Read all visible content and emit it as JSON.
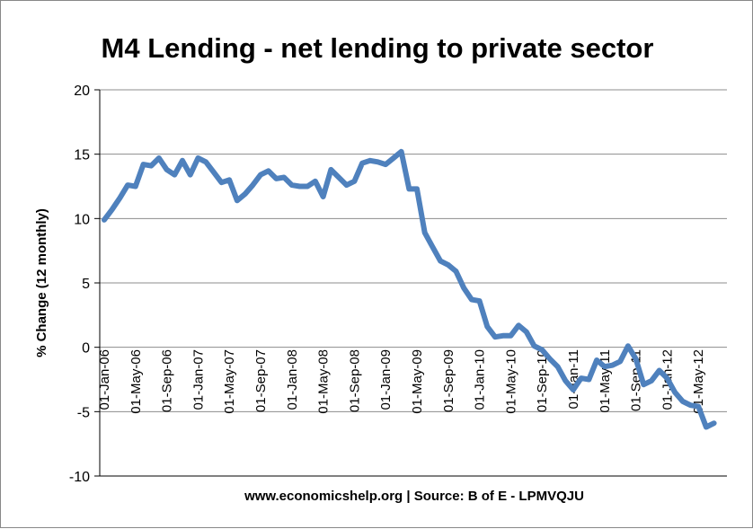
{
  "chart_data": {
    "type": "line",
    "title": "M4 Lending - net lending to private sector",
    "ylabel": "% Change (12 monthly)",
    "xlabel": "www.economicshelp.org | Source: B of E - LPMVQJU",
    "ylim": [
      -10,
      20
    ],
    "yticks": [
      20,
      15,
      10,
      5,
      0,
      -5,
      -10
    ],
    "grid": "horizontal",
    "legend": "none",
    "line_color": "#4f81bd",
    "grid_color": "#8c8c8c",
    "x_tick_labels": [
      "01-Jan-06",
      "01-May-06",
      "01-Sep-06",
      "01-Jan-07",
      "01-May-07",
      "01-Sep-07",
      "01-Jan-08",
      "01-May-08",
      "01-Sep-08",
      "01-Jan-09",
      "01-May-09",
      "01-Sep-09",
      "01-Jan-10",
      "01-May-10",
      "01-Sep-10",
      "01-Jan-11",
      "01-May-11",
      "01-Sep-11",
      "01-Jan-12",
      "01-May-12"
    ],
    "series": [
      {
        "x": [
          "2006-01",
          "2006-02",
          "2006-03",
          "2006-04",
          "2006-05",
          "2006-06",
          "2006-07",
          "2006-08",
          "2006-09",
          "2006-10",
          "2006-11",
          "2006-12",
          "2007-01",
          "2007-02",
          "2007-03",
          "2007-04",
          "2007-05",
          "2007-06",
          "2007-07",
          "2007-08",
          "2007-09",
          "2007-10",
          "2007-11",
          "2007-12",
          "2008-01",
          "2008-02",
          "2008-03",
          "2008-04",
          "2008-05",
          "2008-06",
          "2008-07",
          "2008-08",
          "2008-09",
          "2008-10",
          "2008-11",
          "2008-12",
          "2009-01",
          "2009-02",
          "2009-03",
          "2009-04",
          "2009-05",
          "2009-06",
          "2009-07",
          "2009-08",
          "2009-09",
          "2009-10",
          "2009-11",
          "2009-12",
          "2010-01",
          "2010-02",
          "2010-03",
          "2010-04",
          "2010-05",
          "2010-06",
          "2010-07",
          "2010-08",
          "2010-09",
          "2010-10",
          "2010-11",
          "2010-12",
          "2011-01",
          "2011-02",
          "2011-03",
          "2011-04",
          "2011-05",
          "2011-06",
          "2011-07",
          "2011-08",
          "2011-09",
          "2011-10",
          "2011-11",
          "2011-12",
          "2012-01",
          "2012-02",
          "2012-03",
          "2012-04",
          "2012-05",
          "2012-06",
          "2012-07"
        ],
        "values": [
          9.9,
          10.7,
          11.6,
          12.6,
          12.5,
          14.2,
          14.1,
          14.7,
          13.8,
          13.4,
          14.5,
          13.4,
          14.7,
          14.4,
          13.6,
          12.8,
          13.0,
          11.4,
          11.9,
          12.6,
          13.4,
          13.7,
          13.1,
          13.2,
          12.6,
          12.5,
          12.5,
          12.9,
          11.7,
          13.8,
          13.2,
          12.6,
          12.9,
          14.3,
          14.5,
          14.4,
          14.2,
          14.7,
          15.2,
          12.3,
          12.3,
          8.9,
          7.8,
          6.7,
          6.4,
          5.9,
          4.6,
          3.7,
          3.6,
          1.6,
          0.8,
          0.9,
          0.9,
          1.7,
          1.2,
          0.1,
          -0.2,
          -0.9,
          -1.5,
          -2.6,
          -3.3,
          -2.4,
          -2.5,
          -1.0,
          -1.5,
          -1.4,
          -1.1,
          0.1,
          -0.9,
          -2.9,
          -2.6,
          -1.8,
          -2.4,
          -3.5,
          -4.2,
          -4.5,
          -4.6,
          -6.2,
          -5.9
        ]
      }
    ]
  }
}
